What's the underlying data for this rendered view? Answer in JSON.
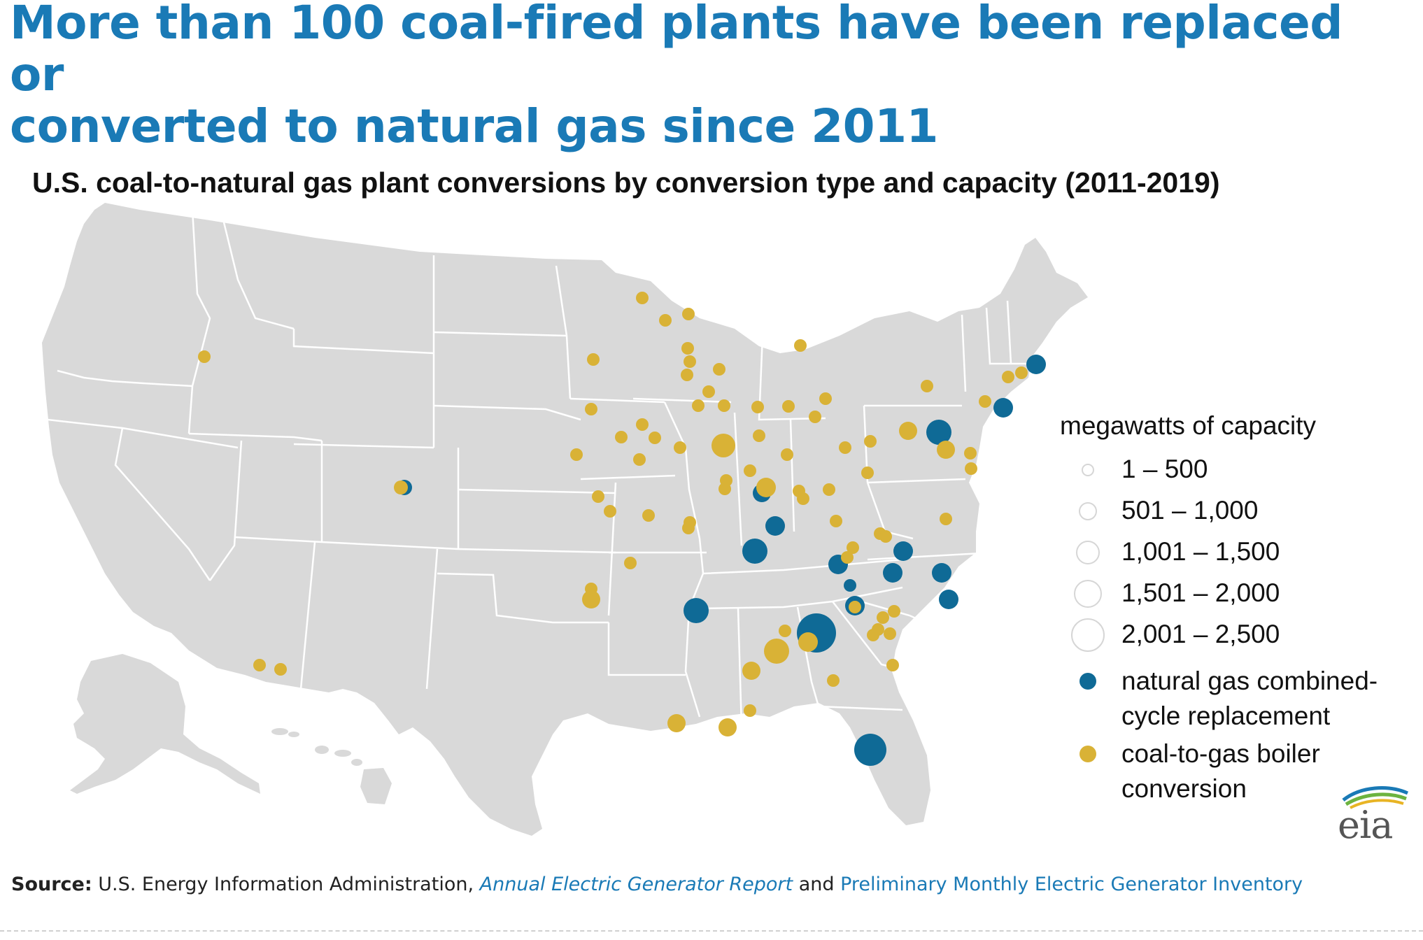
{
  "headline": {
    "line1": "More than 100 coal-fired plants have been replaced or",
    "line2": "converted to natural gas since 2011"
  },
  "map_title": "U.S. coal-to-natural gas plant conversions by conversion type and capacity (2011-2019)",
  "legend": {
    "size_title": "megawatts of capacity",
    "sizes": [
      {
        "label": "1 – 500"
      },
      {
        "label": "501 – 1,000"
      },
      {
        "label": "1,001 – 1,500"
      },
      {
        "label": "1,501 – 2,000"
      },
      {
        "label": "2,001 – 2,500"
      }
    ],
    "types": [
      {
        "label": "natural gas combined-cycle replacement",
        "color": "#0f6a96"
      },
      {
        "label": "coal-to-gas boiler conversion",
        "color": "#d9b236"
      }
    ]
  },
  "colors": {
    "headline": "#1a7ab6",
    "land": "#d9d9d9",
    "state_border": "#ffffff",
    "ngcc": "#0f6a96",
    "boiler": "#d9b236"
  },
  "source": {
    "label": "Source:",
    "org": "U.S. Energy Information Administration,",
    "link1": "Annual Electric Generator Report",
    "and": "and",
    "link2": "Preliminary Monthly Electric Generator Inventory"
  },
  "logo": {
    "text": "eia"
  }
}
